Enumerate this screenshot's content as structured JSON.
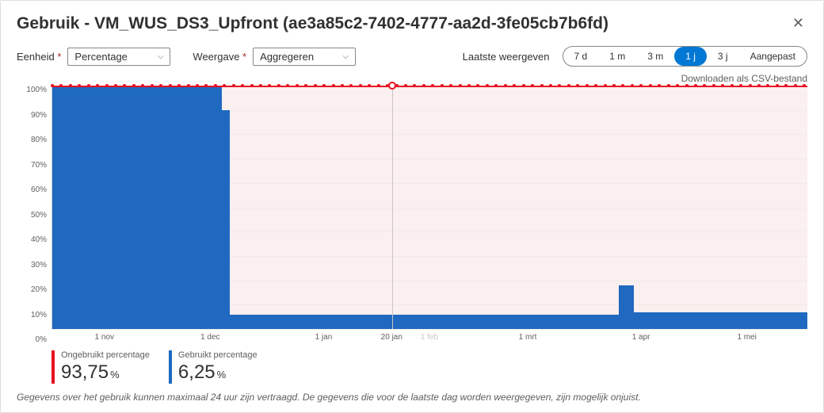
{
  "header": {
    "title": "Gebruik - VM_WUS_DS3_Upfront (ae3a85c2-7402-4777-aa2d-3fe05cb7b6fd)"
  },
  "controls": {
    "unit_label": "Eenheid",
    "unit_value": "Percentage",
    "view_label": "Weergave",
    "view_value": "Aggregeren",
    "range_label": "Laatste weergeven",
    "ranges": [
      "7 d",
      "1 m",
      "3 m",
      "1 j",
      "3 j",
      "Aangepast"
    ],
    "active_range_index": 3
  },
  "download_label": "Downloaden als CSV-bestand",
  "legend": {
    "unused": "ONGEBRUIKT PERCENTAGE",
    "used": "GEBRUIKT PERCENTAGE"
  },
  "chart": {
    "type": "area",
    "y_ticks": [
      "100%",
      "90%",
      "80%",
      "70%",
      "60%",
      "50%",
      "40%",
      "30%",
      "20%",
      "10%",
      "0%"
    ],
    "x_ticks": [
      {
        "label": "1 nov",
        "pos": 7
      },
      {
        "label": "1 dec",
        "pos": 21
      },
      {
        "label": "1 jan",
        "pos": 36
      },
      {
        "label": "20 jan",
        "pos": 45
      },
      {
        "label": "1 feb",
        "pos": 50,
        "muted": true
      },
      {
        "label": "1 mrt",
        "pos": 63
      },
      {
        "label": "1 apr",
        "pos": 78
      },
      {
        "label": "1 mei",
        "pos": 92
      }
    ],
    "ylim": [
      0,
      100
    ],
    "colors": {
      "unused_line": "#e81123",
      "used_fill": "#1f69c0",
      "pink_bg": "#fbefef",
      "grid": "#edebe9",
      "background": "#ffffff",
      "axis_text": "#605e5c"
    },
    "hover": {
      "x_pos_pct": 45,
      "x_label": "20 jan"
    },
    "used_series": [
      {
        "start": 0,
        "end": 22.5,
        "height": 100
      },
      {
        "start": 22.5,
        "end": 23.5,
        "height": 90
      },
      {
        "start": 23.5,
        "end": 75,
        "height": 6
      },
      {
        "start": 75,
        "end": 77,
        "height": 18
      },
      {
        "start": 77,
        "end": 100,
        "height": 7
      }
    ],
    "unused_line_y": 100
  },
  "stats": {
    "unused": {
      "label": "Ongebruikt percentage",
      "value": "93,75",
      "unit": "%",
      "color": "#e81123"
    },
    "used": {
      "label": "Gebruikt percentage",
      "value": "6,25",
      "unit": "%",
      "color": "#1f69c0"
    }
  },
  "footnote": "Gegevens over het gebruik kunnen maximaal 24 uur zijn vertraagd. De gegevens die voor de laatste dag worden weergegeven, zijn mogelijk onjuist."
}
